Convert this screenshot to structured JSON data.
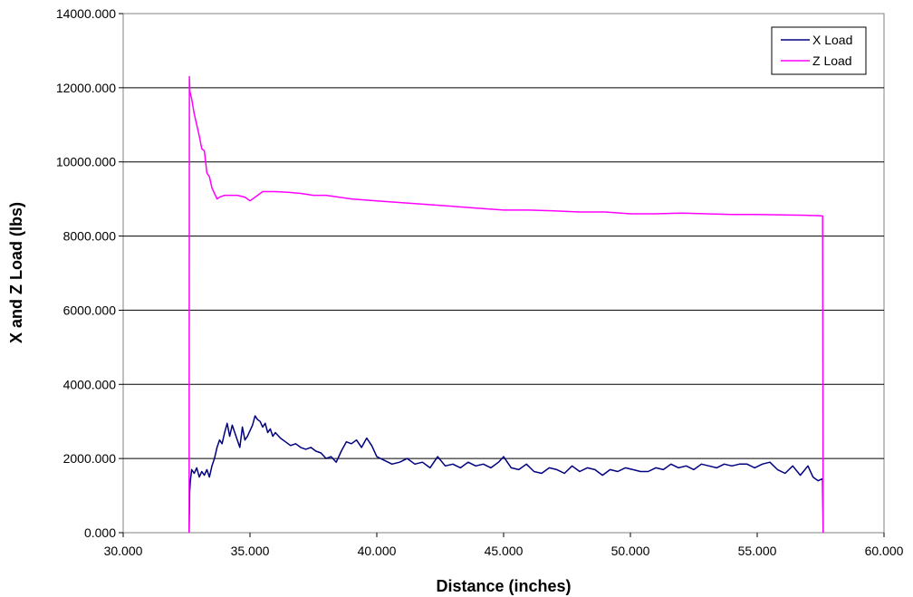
{
  "chart_data": {
    "type": "line",
    "xlabel": "Distance (inches)",
    "ylabel": "X and Z Load (lbs)",
    "xlim": [
      30,
      60
    ],
    "ylim": [
      0,
      14000
    ],
    "x_ticks": [
      "30.000",
      "35.000",
      "40.000",
      "45.000",
      "50.000",
      "55.000",
      "60.000"
    ],
    "y_ticks": [
      "0.000",
      "2000.000",
      "4000.000",
      "6000.000",
      "8000.000",
      "10000.000",
      "12000.000",
      "14000.000"
    ],
    "grid": "horizontal",
    "legend_position": "top-right",
    "series": [
      {
        "name": "X Load",
        "color": "#000080",
        "x": [
          32.6,
          32.62,
          32.65,
          32.7,
          32.8,
          32.9,
          33.0,
          33.1,
          33.2,
          33.3,
          33.4,
          33.5,
          33.6,
          33.7,
          33.8,
          33.9,
          34.0,
          34.1,
          34.2,
          34.3,
          34.4,
          34.5,
          34.6,
          34.7,
          34.8,
          34.9,
          35.0,
          35.1,
          35.2,
          35.3,
          35.4,
          35.5,
          35.6,
          35.7,
          35.8,
          35.9,
          36.0,
          36.2,
          36.4,
          36.6,
          36.8,
          37.0,
          37.2,
          37.4,
          37.6,
          37.8,
          38.0,
          38.2,
          38.4,
          38.6,
          38.8,
          39.0,
          39.2,
          39.4,
          39.6,
          39.8,
          40.0,
          40.3,
          40.6,
          40.9,
          41.2,
          41.5,
          41.8,
          42.1,
          42.4,
          42.7,
          43.0,
          43.3,
          43.6,
          43.9,
          44.2,
          44.5,
          44.8,
          45.0,
          45.3,
          45.6,
          45.9,
          46.2,
          46.5,
          46.8,
          47.1,
          47.4,
          47.7,
          48.0,
          48.3,
          48.6,
          48.9,
          49.2,
          49.5,
          49.8,
          50.1,
          50.4,
          50.7,
          51.0,
          51.3,
          51.6,
          51.9,
          52.2,
          52.5,
          52.8,
          53.1,
          53.4,
          53.7,
          54.0,
          54.3,
          54.6,
          54.9,
          55.2,
          55.5,
          55.8,
          56.1,
          56.4,
          56.7,
          57.0,
          57.2,
          57.4,
          57.55,
          57.58,
          57.6
        ],
        "y": [
          0,
          1100,
          1400,
          1700,
          1600,
          1750,
          1500,
          1650,
          1550,
          1700,
          1500,
          1800,
          2000,
          2300,
          2500,
          2400,
          2700,
          2950,
          2600,
          2900,
          2700,
          2500,
          2300,
          2850,
          2500,
          2600,
          2750,
          2900,
          3150,
          3050,
          3000,
          2850,
          2950,
          2700,
          2800,
          2600,
          2700,
          2550,
          2450,
          2350,
          2400,
          2300,
          2250,
          2300,
          2200,
          2150,
          2000,
          2050,
          1900,
          2200,
          2450,
          2400,
          2500,
          2300,
          2550,
          2350,
          2050,
          1950,
          1850,
          1900,
          2000,
          1850,
          1900,
          1750,
          2050,
          1800,
          1850,
          1750,
          1900,
          1800,
          1850,
          1750,
          1900,
          2050,
          1750,
          1700,
          1850,
          1650,
          1600,
          1750,
          1700,
          1600,
          1800,
          1650,
          1750,
          1700,
          1550,
          1700,
          1650,
          1750,
          1700,
          1650,
          1650,
          1750,
          1700,
          1850,
          1750,
          1800,
          1700,
          1850,
          1800,
          1750,
          1850,
          1800,
          1850,
          1850,
          1750,
          1850,
          1900,
          1700,
          1600,
          1800,
          1550,
          1800,
          1500,
          1400,
          1450,
          1450,
          0
        ]
      },
      {
        "name": "Z Load",
        "color": "#ff00ff",
        "x": [
          32.6,
          32.61,
          32.63,
          32.7,
          32.8,
          32.9,
          33.0,
          33.1,
          33.2,
          33.25,
          33.3,
          33.4,
          33.5,
          33.6,
          33.7,
          33.8,
          34.0,
          34.2,
          34.5,
          34.8,
          35.0,
          35.2,
          35.3,
          35.5,
          36.0,
          36.5,
          37.0,
          37.5,
          38.0,
          39.0,
          40.0,
          41.0,
          42.0,
          43.0,
          44.0,
          45.0,
          46.0,
          47.0,
          48.0,
          49.0,
          50.0,
          51.0,
          52.0,
          53.0,
          54.0,
          55.0,
          56.0,
          57.0,
          57.5,
          57.58,
          57.6
        ],
        "y": [
          0,
          12300,
          11900,
          11700,
          11300,
          11000,
          10700,
          10350,
          10300,
          10000,
          9700,
          9600,
          9300,
          9150,
          9000,
          9050,
          9100,
          9100,
          9100,
          9050,
          8950,
          9050,
          9100,
          9200,
          9200,
          9180,
          9150,
          9100,
          9100,
          9000,
          8950,
          8900,
          8850,
          8800,
          8750,
          8700,
          8700,
          8680,
          8650,
          8650,
          8600,
          8600,
          8620,
          8600,
          8580,
          8580,
          8570,
          8560,
          8550,
          8540,
          0
        ]
      }
    ]
  }
}
